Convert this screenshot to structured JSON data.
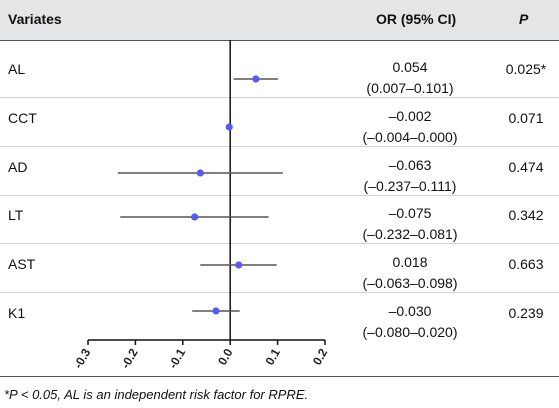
{
  "table": {
    "headers": {
      "variates": "Variates",
      "or_ci": "OR (95% CI)",
      "p": "P"
    },
    "rows": [
      {
        "label": "AL",
        "or": "0.054",
        "ci": "(0.007–0.101)",
        "p": "0.025*"
      },
      {
        "label": "CCT",
        "or": "–0.002",
        "ci": "(–0.004–0.000)",
        "p": "0.071"
      },
      {
        "label": "AD",
        "or": "–0.063",
        "ci": "(–0.237–0.111)",
        "p": "0.474"
      },
      {
        "label": "LT",
        "or": "–0.075",
        "ci": "(–0.232–0.081)",
        "p": "0.342"
      },
      {
        "label": "AST",
        "or": "0.018",
        "ci": "(–0.063–0.098)",
        "p": "0.663"
      },
      {
        "label": "K1",
        "or": "–0.030",
        "ci": "(–0.080–0.020)",
        "p": "0.239"
      }
    ],
    "footnote": "*P < 0.05, AL is an independent risk factor for RPRE."
  },
  "chart_data": {
    "type": "forest",
    "categories": [
      "AL",
      "CCT",
      "AD",
      "LT",
      "AST",
      "K1"
    ],
    "estimates": [
      0.054,
      -0.002,
      -0.063,
      -0.075,
      0.018,
      -0.03
    ],
    "ci_lower": [
      0.007,
      -0.004,
      -0.237,
      -0.232,
      -0.063,
      -0.08
    ],
    "ci_upper": [
      0.101,
      0.0,
      0.111,
      0.081,
      0.098,
      0.02
    ],
    "xlim": [
      -0.3,
      0.2
    ],
    "xticks": [
      -0.3,
      -0.2,
      -0.1,
      0.0,
      0.1,
      0.2
    ],
    "xtick_labels": [
      "-0.3",
      "-0.2",
      "-0.1",
      "0.0",
      "0.1",
      "0.2"
    ],
    "reference_line": 0,
    "grid": false,
    "colors": {
      "point": "#5a5af0",
      "whisker": "#555555",
      "axis": "#111111",
      "header_band": "#e4e5e6",
      "row_divider": "#cfd3d6"
    }
  }
}
